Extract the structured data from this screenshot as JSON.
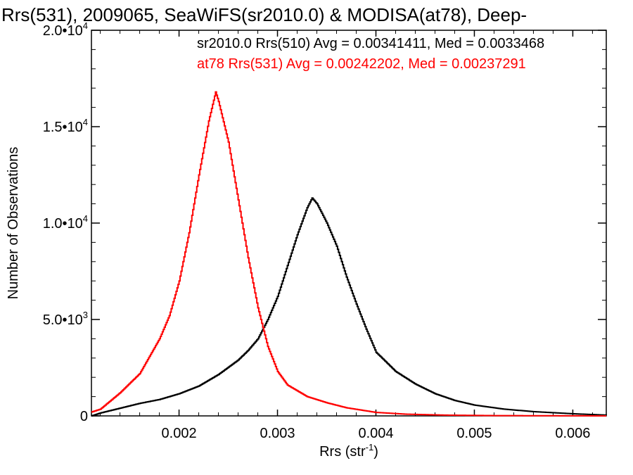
{
  "chart_data": {
    "type": "line",
    "title": "Rrs(531), 2009065, SeaWiFS(sr2010.0) & MODISA(at78), Deep-",
    "xlabel": "Rrs (str",
    "xlabel_sup": "-1",
    "xlabel_close": ")",
    "ylabel": "Number of Observations",
    "xlim": [
      0.00111,
      0.00634
    ],
    "ylim": [
      0,
      20000
    ],
    "x_ticks": [
      {
        "value": 0.002,
        "label": "0.002"
      },
      {
        "value": 0.003,
        "label": "0.003"
      },
      {
        "value": 0.004,
        "label": "0.004"
      },
      {
        "value": 0.005,
        "label": "0.005"
      },
      {
        "value": 0.006,
        "label": "0.006"
      }
    ],
    "y_ticks": [
      {
        "value": 0,
        "label": "0",
        "sup": ""
      },
      {
        "value": 5000,
        "label": "5.0•10",
        "sup": "3"
      },
      {
        "value": 10000,
        "label": "1.0•10",
        "sup": "4"
      },
      {
        "value": 15000,
        "label": "1.5•10",
        "sup": "4"
      },
      {
        "value": 20000,
        "label": "2.0•10",
        "sup": "4"
      }
    ],
    "grid": false,
    "legend_position": "top-right",
    "series": [
      {
        "name": "sr2010.0 Rrs(510) Avg = 0.00341411, Med = 0.0033468",
        "color": "#000000",
        "points": [
          [
            0.00111,
            0
          ],
          [
            0.0012,
            150
          ],
          [
            0.0014,
            400
          ],
          [
            0.0016,
            650
          ],
          [
            0.0018,
            850
          ],
          [
            0.002,
            1150
          ],
          [
            0.0022,
            1550
          ],
          [
            0.0024,
            2150
          ],
          [
            0.0026,
            2900
          ],
          [
            0.0027,
            3400
          ],
          [
            0.0028,
            4000
          ],
          [
            0.0029,
            5000
          ],
          [
            0.003,
            6200
          ],
          [
            0.0031,
            7800
          ],
          [
            0.0032,
            9400
          ],
          [
            0.0033,
            10800
          ],
          [
            0.00335,
            11300
          ],
          [
            0.0034,
            11000
          ],
          [
            0.0035,
            10000
          ],
          [
            0.0036,
            8800
          ],
          [
            0.0037,
            7200
          ],
          [
            0.0038,
            5800
          ],
          [
            0.0039,
            4500
          ],
          [
            0.004,
            3300
          ],
          [
            0.0042,
            2300
          ],
          [
            0.0044,
            1650
          ],
          [
            0.0046,
            1150
          ],
          [
            0.0048,
            800
          ],
          [
            0.005,
            560
          ],
          [
            0.0053,
            350
          ],
          [
            0.0056,
            220
          ],
          [
            0.006,
            110
          ],
          [
            0.00634,
            40
          ]
        ]
      },
      {
        "name": "at78 Rrs(531) Avg = 0.00242202, Med = 0.00237291",
        "color": "#ff0000",
        "points": [
          [
            0.00111,
            200
          ],
          [
            0.0012,
            350
          ],
          [
            0.0014,
            1200
          ],
          [
            0.0016,
            2200
          ],
          [
            0.0017,
            3100
          ],
          [
            0.0018,
            4000
          ],
          [
            0.0019,
            5200
          ],
          [
            0.002,
            7000
          ],
          [
            0.0021,
            9500
          ],
          [
            0.0022,
            12500
          ],
          [
            0.0023,
            15300
          ],
          [
            0.00237,
            16800
          ],
          [
            0.0024,
            16300
          ],
          [
            0.0025,
            14200
          ],
          [
            0.0026,
            11200
          ],
          [
            0.0027,
            8200
          ],
          [
            0.0028,
            5600
          ],
          [
            0.0029,
            3600
          ],
          [
            0.003,
            2300
          ],
          [
            0.0031,
            1600
          ],
          [
            0.0033,
            1000
          ],
          [
            0.0035,
            680
          ],
          [
            0.0037,
            420
          ],
          [
            0.004,
            180
          ],
          [
            0.0043,
            90
          ],
          [
            0.0047,
            40
          ],
          [
            0.0052,
            15
          ],
          [
            0.006,
            5
          ],
          [
            0.00634,
            0
          ]
        ]
      }
    ]
  }
}
